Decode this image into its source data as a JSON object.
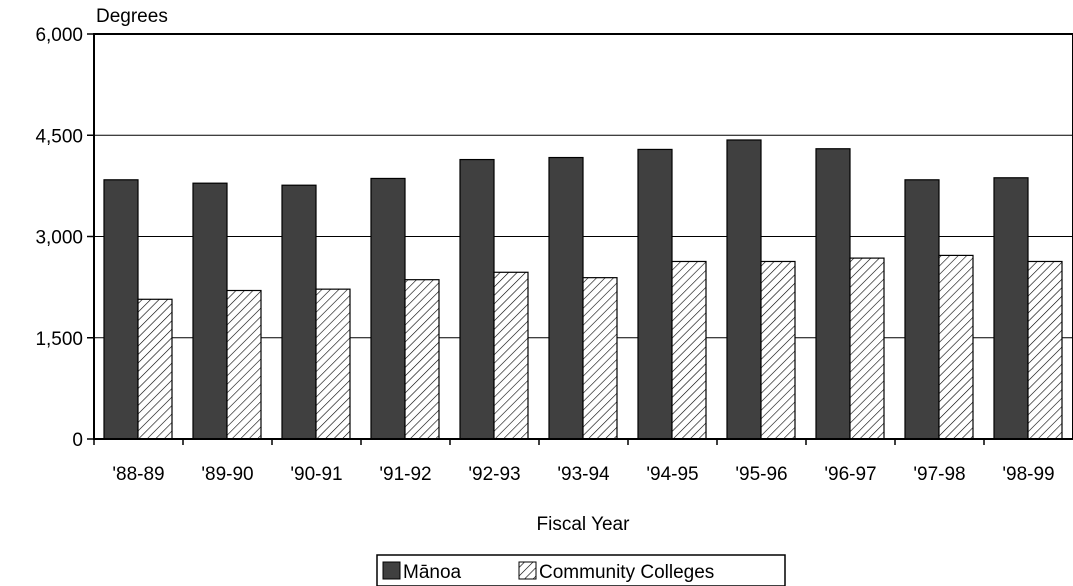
{
  "chart_data": {
    "type": "bar",
    "title": "",
    "ylabel": "Degrees",
    "xlabel": "Fiscal Year",
    "categories": [
      "'88-89",
      "'89-90",
      "'90-91",
      "'91-92",
      "'92-93",
      "'93-94",
      "'94-95",
      "'95-96",
      "'96-97",
      "'97-98",
      "'98-99"
    ],
    "series": [
      {
        "name": "Mānoa",
        "values": [
          3840,
          3790,
          3760,
          3860,
          4140,
          4170,
          4290,
          4430,
          4300,
          3840,
          3870
        ]
      },
      {
        "name": "Community Colleges",
        "values": [
          2070,
          2200,
          2220,
          2360,
          2470,
          2390,
          2630,
          2630,
          2680,
          2720,
          2630
        ]
      }
    ],
    "ylim": [
      0,
      6000
    ],
    "yticks": [
      0,
      1500,
      3000,
      4500,
      6000
    ],
    "ytick_labels": [
      "0",
      "1,500",
      "3,000",
      "4,500",
      "6,000"
    ],
    "grid": true,
    "legend_position": "bottom",
    "colors": {
      "manoa": "#404040",
      "cc_fill": "#ffffff",
      "outline": "#000000"
    }
  }
}
